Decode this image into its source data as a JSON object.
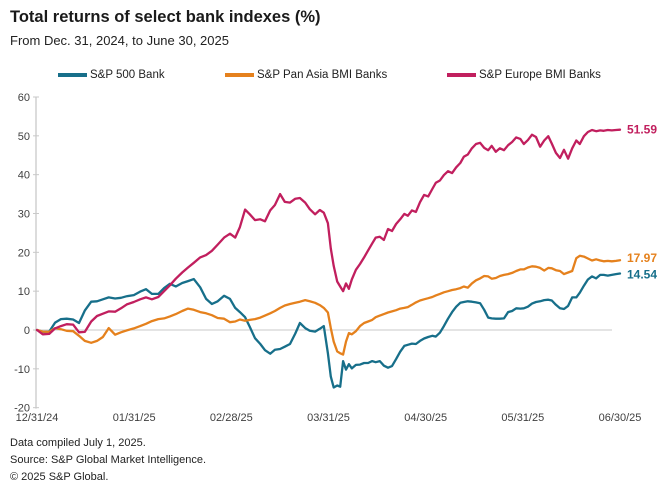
{
  "header": {
    "title": "Total returns of select bank indexes (%)",
    "subtitle": "From Dec. 31, 2024, to June 30, 2025"
  },
  "footer": {
    "line1": "Data compiled July 1, 2025.",
    "line2": "Source: S&P Global Market Intelligence.",
    "line3": "© 2025 S&P Global."
  },
  "chart_data": {
    "type": "line",
    "title": "Total returns of select bank indexes (%)",
    "subtitle": "From Dec. 31, 2024, to June 30, 2025",
    "xlabel": "",
    "ylabel": "",
    "ylim": [
      -20,
      60
    ],
    "y_ticks": [
      60,
      50,
      40,
      30,
      20,
      10,
      0,
      -10,
      -20
    ],
    "x_tick_labels": [
      "12/31/24",
      "01/31/25",
      "02/28/25",
      "03/31/25",
      "04/30/25",
      "05/31/25",
      "06/30/25"
    ],
    "grid": "zero-line-only",
    "legend_position": "top",
    "x_note": "t = fraction of period from Dec. 31, 2024 (0) to June 30, 2025 (1)",
    "t": [
      0.0,
      0.01,
      0.021,
      0.031,
      0.041,
      0.051,
      0.062,
      0.072,
      0.082,
      0.093,
      0.103,
      0.113,
      0.123,
      0.134,
      0.144,
      0.154,
      0.166,
      0.177,
      0.187,
      0.197,
      0.208,
      0.218,
      0.228,
      0.238,
      0.249,
      0.259,
      0.269,
      0.28,
      0.29,
      0.3,
      0.31,
      0.321,
      0.331,
      0.34,
      0.348,
      0.357,
      0.365,
      0.374,
      0.383,
      0.391,
      0.4,
      0.408,
      0.417,
      0.425,
      0.434,
      0.443,
      0.451,
      0.46,
      0.468,
      0.477,
      0.485,
      0.492,
      0.499,
      0.504,
      0.509,
      0.515,
      0.52,
      0.525,
      0.53,
      0.535,
      0.54,
      0.547,
      0.554,
      0.561,
      0.568,
      0.575,
      0.581,
      0.588,
      0.595,
      0.602,
      0.609,
      0.616,
      0.623,
      0.63,
      0.636,
      0.643,
      0.65,
      0.657,
      0.664,
      0.671,
      0.678,
      0.684,
      0.691,
      0.698,
      0.705,
      0.712,
      0.719,
      0.726,
      0.732,
      0.739,
      0.746,
      0.753,
      0.76,
      0.767,
      0.774,
      0.78,
      0.787,
      0.794,
      0.801,
      0.808,
      0.815,
      0.822,
      0.829,
      0.835,
      0.842,
      0.849,
      0.856,
      0.863,
      0.87,
      0.877,
      0.883,
      0.89,
      0.897,
      0.904,
      0.911,
      0.918,
      0.925,
      0.931,
      0.938,
      0.945,
      0.952,
      0.959,
      0.966,
      0.972,
      0.979,
      0.986,
      0.993,
      1.0
    ],
    "series": [
      {
        "id": "sp-500-bank",
        "name": "S&P 500 Bank",
        "color": "#176f8a",
        "end_label": "14.54",
        "end_value": 14.54,
        "values": [
          0.0,
          -0.5,
          -0.4,
          1.9,
          2.8,
          2.9,
          2.7,
          1.8,
          5.0,
          7.3,
          7.4,
          7.9,
          8.4,
          8.1,
          8.3,
          8.7,
          9.0,
          9.9,
          10.5,
          9.3,
          9.3,
          10.8,
          11.9,
          11.2,
          12.1,
          12.6,
          13.1,
          11.0,
          8.0,
          6.7,
          7.4,
          8.8,
          8.0,
          5.7,
          4.6,
          3.3,
          0.8,
          -2.1,
          -3.6,
          -5.2,
          -6.1,
          -5.1,
          -4.9,
          -4.3,
          -3.6,
          -0.9,
          1.8,
          0.5,
          -0.2,
          -0.4,
          0.3,
          1.0,
          -6.0,
          -12.0,
          -14.8,
          -14.3,
          -14.6,
          -8.0,
          -10.2,
          -8.8,
          -9.9,
          -9.0,
          -8.9,
          -8.5,
          -8.5,
          -8.0,
          -8.3,
          -8.0,
          -9.2,
          -9.7,
          -9.3,
          -7.5,
          -5.6,
          -4.1,
          -3.8,
          -3.5,
          -3.6,
          -2.8,
          -2.2,
          -1.8,
          -1.5,
          -1.7,
          -0.7,
          1.0,
          2.9,
          4.6,
          6.0,
          7.0,
          7.2,
          7.4,
          7.3,
          7.1,
          6.9,
          5.2,
          3.2,
          3.0,
          2.9,
          2.9,
          3.0,
          4.6,
          4.9,
          5.6,
          5.5,
          5.6,
          6.0,
          6.8,
          7.2,
          7.4,
          7.7,
          7.8,
          7.6,
          6.5,
          5.6,
          5.4,
          6.2,
          8.4,
          8.4,
          9.6,
          11.4,
          13.0,
          13.8,
          13.3,
          14.2,
          14.2,
          14.0,
          14.2,
          14.4,
          14.54
        ]
      },
      {
        "id": "sp-pan-asia-bmi-banks",
        "name": "S&P Pan Asia BMI Banks",
        "color": "#e5811d",
        "end_label": "17.97",
        "end_value": 17.97,
        "values": [
          0.0,
          -0.4,
          -0.5,
          0.5,
          0.2,
          -0.2,
          -0.3,
          -1.5,
          -2.8,
          -3.3,
          -2.8,
          -1.8,
          0.5,
          -1.2,
          -0.6,
          -0.1,
          0.4,
          1.0,
          1.6,
          2.3,
          2.8,
          3.0,
          3.5,
          4.1,
          4.9,
          5.5,
          5.2,
          4.6,
          4.3,
          3.8,
          3.1,
          2.9,
          2.0,
          2.2,
          2.7,
          2.4,
          2.6,
          2.8,
          3.2,
          3.7,
          4.3,
          4.9,
          5.7,
          6.3,
          6.7,
          7.0,
          7.3,
          7.7,
          7.4,
          7.0,
          6.4,
          5.7,
          4.5,
          0.5,
          -3.0,
          -5.5,
          -6.0,
          -6.3,
          -3.0,
          -0.8,
          -1.1,
          -0.3,
          1.0,
          1.8,
          2.2,
          2.6,
          3.3,
          3.7,
          4.1,
          4.5,
          4.8,
          5.1,
          5.5,
          5.7,
          5.9,
          6.5,
          7.1,
          7.6,
          7.9,
          8.2,
          8.5,
          8.9,
          9.3,
          9.7,
          10.0,
          10.3,
          10.5,
          10.8,
          11.2,
          10.9,
          12.0,
          12.8,
          13.3,
          13.9,
          13.8,
          13.2,
          13.4,
          13.9,
          14.2,
          14.4,
          14.7,
          15.2,
          15.6,
          15.6,
          16.1,
          16.4,
          16.3,
          16.0,
          15.3,
          16.0,
          15.9,
          15.4,
          15.2,
          14.4,
          14.8,
          15.2,
          18.5,
          19.1,
          18.9,
          18.4,
          17.9,
          18.2,
          17.9,
          17.7,
          17.8,
          17.7,
          17.8,
          17.97
        ]
      },
      {
        "id": "sp-europe-bmi-banks",
        "name": "S&P Europe BMI Banks",
        "color": "#c11f5e",
        "end_label": "51.59",
        "end_value": 51.59,
        "values": [
          0.0,
          -1.1,
          -1.0,
          0.4,
          1.0,
          1.5,
          1.4,
          -0.6,
          -0.5,
          2.2,
          3.6,
          4.2,
          4.8,
          4.7,
          5.6,
          6.6,
          7.2,
          7.9,
          8.4,
          7.9,
          8.5,
          10.0,
          11.5,
          13.2,
          14.8,
          16.1,
          17.3,
          18.7,
          19.3,
          20.4,
          22.0,
          23.8,
          24.8,
          23.8,
          26.5,
          31.0,
          29.8,
          28.3,
          28.5,
          28.0,
          30.8,
          32.2,
          35.0,
          33.0,
          32.8,
          33.8,
          34.0,
          32.8,
          31.1,
          29.8,
          30.9,
          30.2,
          27.5,
          21.0,
          16.5,
          12.5,
          11.2,
          10.0,
          12.0,
          10.6,
          13.0,
          15.5,
          17.0,
          18.7,
          20.5,
          22.3,
          23.8,
          24.0,
          23.2,
          26.0,
          25.5,
          27.3,
          28.5,
          29.9,
          29.4,
          30.8,
          30.4,
          32.9,
          34.8,
          34.4,
          36.3,
          37.9,
          38.5,
          39.9,
          40.9,
          40.4,
          41.9,
          43.0,
          44.6,
          45.2,
          46.8,
          47.9,
          48.2,
          46.9,
          46.3,
          47.4,
          45.9,
          46.8,
          46.3,
          47.6,
          48.4,
          49.6,
          49.2,
          47.9,
          48.9,
          50.3,
          49.7,
          47.2,
          48.8,
          49.9,
          48.0,
          45.6,
          44.3,
          46.4,
          44.1,
          46.8,
          48.8,
          47.9,
          49.9,
          51.0,
          51.5,
          51.2,
          51.4,
          51.3,
          51.5,
          51.4,
          51.5,
          51.59
        ]
      }
    ]
  }
}
